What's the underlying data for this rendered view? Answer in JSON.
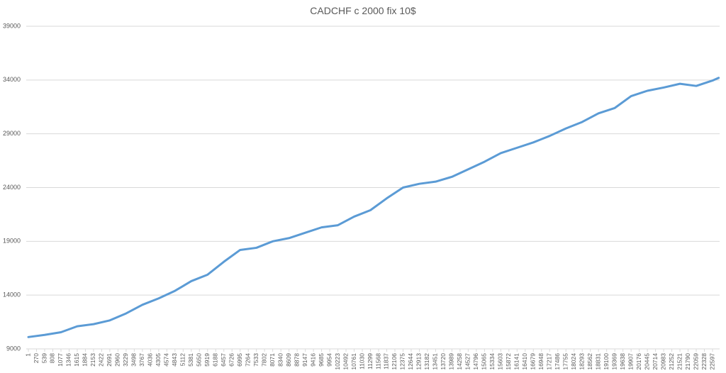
{
  "chart_data": {
    "type": "line",
    "title": "CADCHF c 2000 fix 10$",
    "x": [
      1,
      539,
      1077,
      1615,
      2153,
      2691,
      3229,
      3767,
      4305,
      4843,
      5381,
      5919,
      6457,
      6995,
      7533,
      8071,
      8609,
      9147,
      9685,
      10223,
      10761,
      11299,
      11837,
      12375,
      12913,
      13451,
      13989,
      14527,
      15065,
      15603,
      16141,
      16679,
      17217,
      17755,
      18293,
      18831,
      19369,
      19907,
      20445,
      20983,
      21521,
      22059,
      22597,
      22800
    ],
    "series": [
      {
        "color": "#5b9bd5",
        "values": [
          10100,
          10300,
          10550,
          11100,
          11300,
          11650,
          12300,
          13100,
          13700,
          14400,
          15300,
          15900,
          17100,
          18200,
          18400,
          19000,
          19300,
          19800,
          20300,
          20500,
          21300,
          21900,
          23000,
          24000,
          24350,
          24550,
          25000,
          25700,
          26400,
          27200,
          27700,
          28200,
          28800,
          29500,
          30100,
          30900,
          31400,
          32500,
          33000,
          33300,
          33650,
          33450,
          33950,
          34200
        ]
      }
    ],
    "xlim": [
      -70,
      22831
    ],
    "xticks": [
      1,
      270,
      539,
      808,
      1077,
      1346,
      1615,
      1884,
      2153,
      2422,
      2691,
      2960,
      3229,
      3498,
      3767,
      4036,
      4305,
      4574,
      4843,
      5112,
      5381,
      5650,
      5919,
      6188,
      6457,
      6726,
      6995,
      7264,
      7533,
      7802,
      8071,
      8340,
      8609,
      8878,
      9147,
      9416,
      9685,
      9954,
      10223,
      10492,
      10761,
      11030,
      11299,
      11568,
      11837,
      12106,
      12375,
      12644,
      12913,
      13182,
      13451,
      13720,
      13989,
      14258,
      14527,
      14796,
      15065,
      15334,
      15603,
      15872,
      16141,
      16410,
      16679,
      16948,
      17217,
      17486,
      17755,
      18024,
      18293,
      18562,
      18831,
      19100,
      19369,
      19638,
      19907,
      20176,
      20445,
      20714,
      20983,
      21252,
      21521,
      21790,
      22059,
      22328,
      22597
    ],
    "ylim": [
      9000,
      39000
    ],
    "yticks": [
      9000,
      14000,
      19000,
      24000,
      29000,
      34000,
      39000
    ],
    "grid": true
  }
}
